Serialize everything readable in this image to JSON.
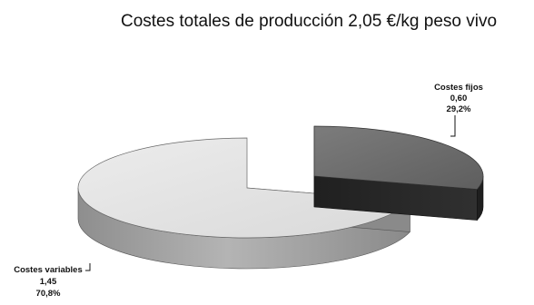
{
  "chart_data": {
    "type": "pie",
    "title": "Costes totales de producción 2,05 €/kg peso vivo",
    "style": "3d-exploded",
    "slices": [
      {
        "name": "Costes fijos",
        "value": 0.6,
        "value_label": "0,60",
        "percent_label": "29,2%",
        "top_color": "#707070",
        "side_color": "#2b2b2b",
        "exploded": true
      },
      {
        "name": "Costes variables",
        "value": 1.45,
        "value_label": "1,45",
        "percent_label": "70,8%",
        "top_color": "#e4e4e4",
        "side_color": "#9c9c9c",
        "exploded": false
      }
    ]
  }
}
